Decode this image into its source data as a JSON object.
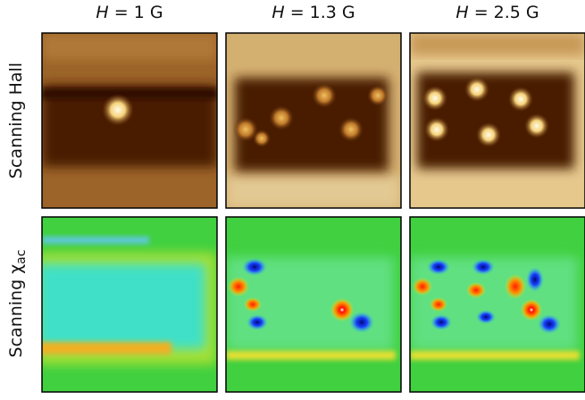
{
  "columns": [
    {
      "symbol": "H",
      "text": " = 1 G"
    },
    {
      "symbol": "H",
      "text": " = 1.3 G"
    },
    {
      "symbol": "H",
      "text": " = 2.5 G"
    }
  ],
  "rows": [
    {
      "label": "Scanning Hall"
    },
    {
      "label": "Scanning χ",
      "subscript": "ac"
    }
  ]
}
